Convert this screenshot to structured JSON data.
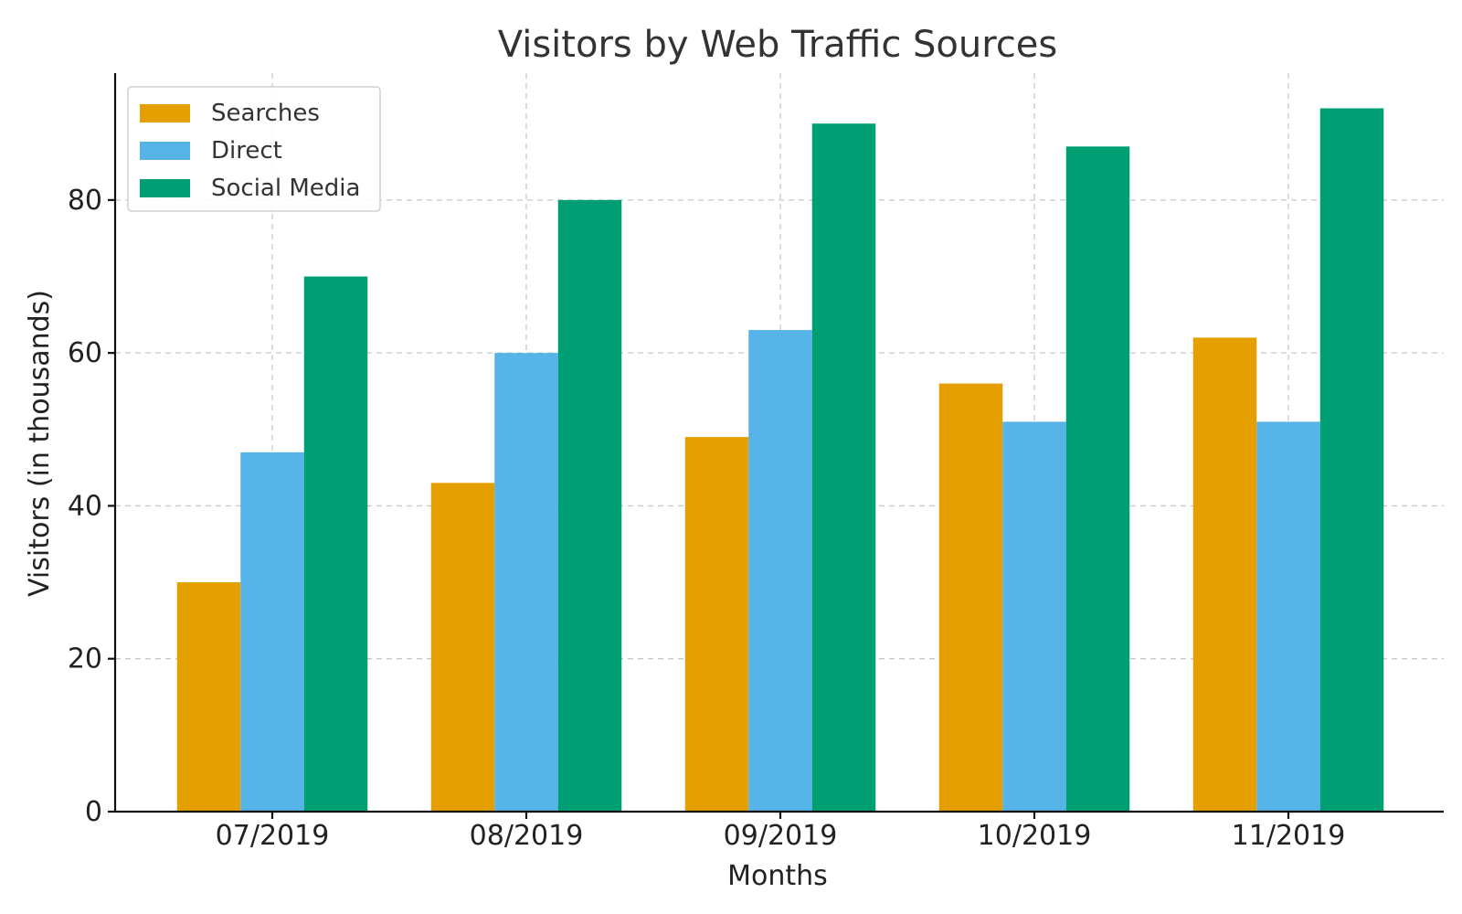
{
  "chart_data": {
    "type": "bar",
    "title": "Visitors by Web Traffic Sources",
    "xlabel": "Months",
    "ylabel": "Visitors (in thousands)",
    "categories": [
      "07/2019",
      "08/2019",
      "09/2019",
      "10/2019",
      "11/2019"
    ],
    "series": [
      {
        "name": "Searches",
        "color": "#E69F00",
        "values": [
          30,
          43,
          49,
          56,
          62
        ]
      },
      {
        "name": "Direct",
        "color": "#56B4E9",
        "values": [
          47,
          60,
          63,
          51,
          51
        ]
      },
      {
        "name": "Social Media",
        "color": "#009E73",
        "values": [
          70,
          80,
          90,
          87,
          92
        ]
      }
    ],
    "ylim": [
      0,
      96.6
    ],
    "yticks": [
      0,
      20,
      40,
      60,
      80
    ],
    "grid": true,
    "legend_position": "top-left"
  }
}
